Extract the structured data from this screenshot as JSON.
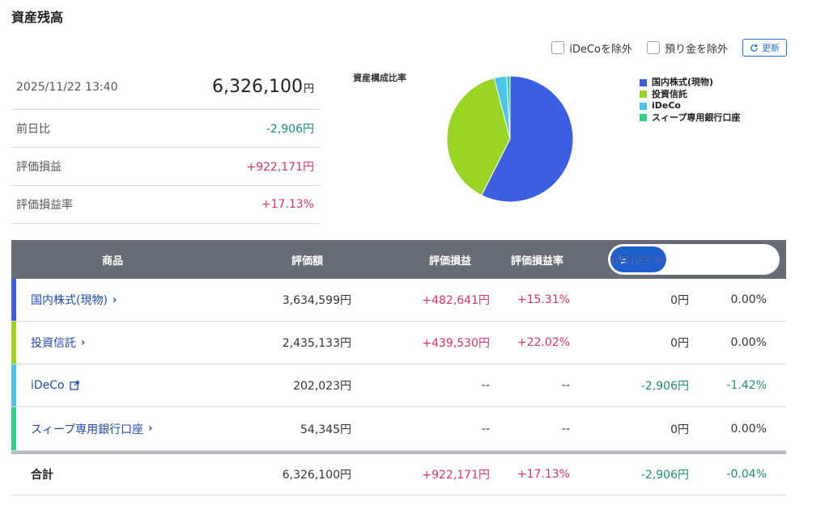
{
  "title": "資産残高",
  "summary": {
    "datetime": "2025/11/22 13:40",
    "total_value": "6,326,100",
    "yen": "円",
    "rows": [
      {
        "label": "前日比",
        "value": "-2,906円"
      },
      {
        "label": "評価損益",
        "value": "+922,171円"
      },
      {
        "label": "評価損益率",
        "value": "+17.13%"
      }
    ]
  },
  "controls": {
    "exclude_ideco": "iDeCoを除外",
    "exclude_deposit": "預り金を除外",
    "refresh": "更新"
  },
  "chart_data": {
    "type": "pie",
    "title": "資産構成比率",
    "legend_position": "right",
    "slices": [
      {
        "name": "国内株式(現物)",
        "value": 3634599,
        "color": "#3b5fe0"
      },
      {
        "name": "投資信託",
        "value": 2435133,
        "color": "#9ad424"
      },
      {
        "name": "iDeCo",
        "value": 202023,
        "color": "#4cc3ea"
      },
      {
        "name": "スィープ専用銀行口座",
        "value": 54345,
        "color": "#2ed486"
      }
    ]
  },
  "table": {
    "headers": {
      "product": "商品",
      "value": "評価額",
      "pl": "評価損益",
      "pl_rate": "評価損益率"
    },
    "toggle": {
      "day": "前日比/率(%)",
      "month": "前月比/率(%)"
    },
    "rows": [
      {
        "name": "国内株式(現物)",
        "value": "3,634,599円",
        "pl": "+482,641円",
        "pl_rate": "+15.31%",
        "change": "0円",
        "change_rate": "0.00%",
        "color": "#3b5fe0"
      },
      {
        "name": "投資信託",
        "value": "2,435,133円",
        "pl": "+439,530円",
        "pl_rate": "+22.02%",
        "change": "0円",
        "change_rate": "0.00%",
        "color": "#9ad424"
      },
      {
        "name": "iDeCo",
        "value": "202,023円",
        "pl": "--",
        "pl_rate": "--",
        "change": "-2,906円",
        "change_rate": "-1.42%",
        "color": "#4cc3ea"
      },
      {
        "name": "スィープ専用銀行口座",
        "value": "54,345円",
        "pl": "--",
        "pl_rate": "--",
        "change": "0円",
        "change_rate": "0.00%",
        "color": "#2ed486"
      }
    ],
    "total": {
      "name": "合計",
      "value": "6,326,100円",
      "pl": "+922,171円",
      "pl_rate": "+17.13%",
      "change": "-2,906円",
      "change_rate": "-0.04%"
    }
  }
}
